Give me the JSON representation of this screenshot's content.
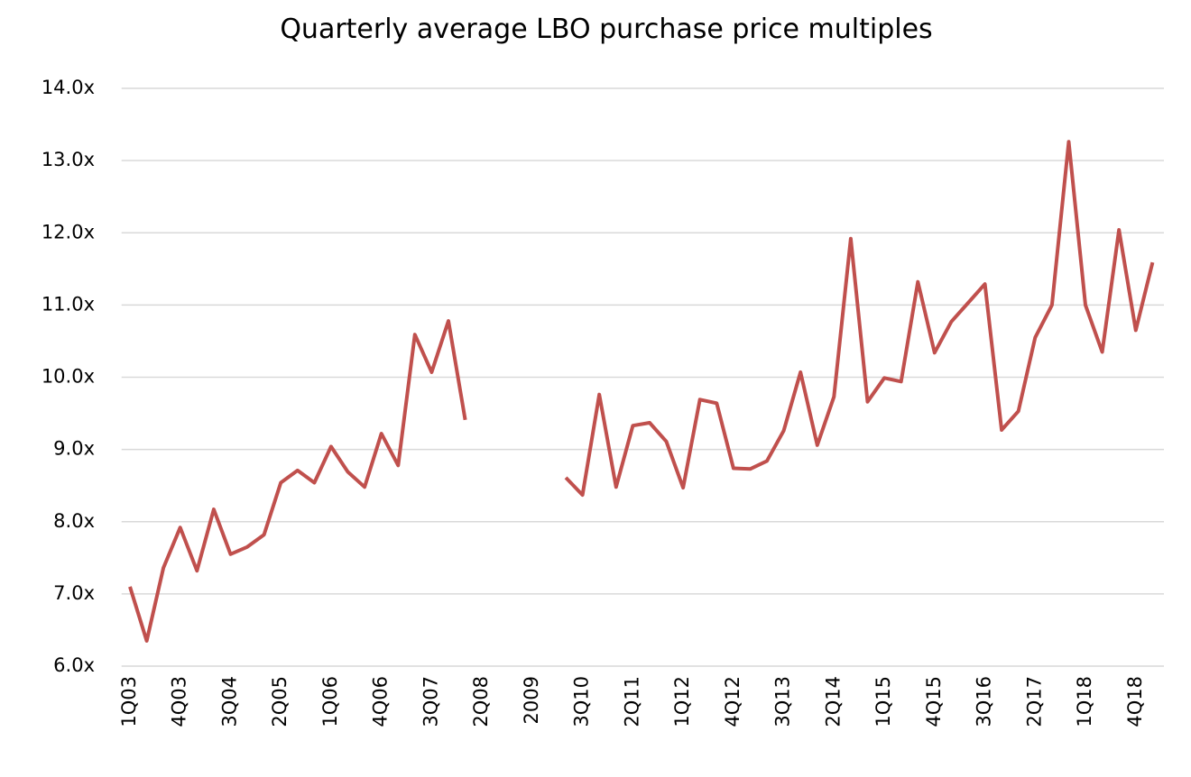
{
  "chart_data": {
    "type": "line",
    "title": "Quarterly average LBO purchase price multiples",
    "categories": [
      "1Q03",
      null,
      null,
      "4Q03",
      null,
      null,
      "3Q04",
      null,
      null,
      "2Q05",
      null,
      null,
      "1Q06",
      null,
      null,
      "4Q06",
      null,
      null,
      "3Q07",
      null,
      null,
      "2Q08",
      null,
      null,
      "2009",
      null,
      null,
      "3Q10",
      null,
      null,
      "2Q11",
      null,
      null,
      "1Q12",
      null,
      null,
      "4Q12",
      null,
      null,
      "3Q13",
      null,
      null,
      "2Q14",
      null,
      null,
      "1Q15",
      null,
      null,
      "4Q15",
      null,
      null,
      "3Q16",
      null,
      null,
      "2Q17",
      null,
      null,
      "1Q18",
      null,
      null,
      "4Q18",
      null
    ],
    "series": [
      {
        "name": "LBO purchase price multiple",
        "color": "#c0504d",
        "values": [
          7.1,
          6.35,
          7.36,
          7.92,
          7.32,
          8.17,
          7.55,
          7.65,
          7.82,
          8.54,
          8.71,
          8.54,
          9.04,
          8.69,
          8.48,
          9.22,
          8.78,
          10.59,
          10.07,
          10.78,
          9.41,
          null,
          null,
          null,
          null,
          null,
          8.61,
          8.37,
          9.76,
          8.48,
          9.33,
          9.37,
          9.11,
          8.47,
          9.69,
          9.64,
          8.74,
          8.73,
          8.84,
          9.26,
          10.07,
          9.06,
          9.73,
          11.92,
          9.66,
          9.99,
          9.94,
          11.32,
          10.34,
          10.77,
          11.03,
          11.29,
          9.27,
          9.53,
          10.55,
          11.0,
          13.26,
          11.0,
          10.35,
          12.04,
          10.65,
          11.59
        ]
      }
    ],
    "ylim": [
      6,
      14
    ],
    "yticks": [
      {
        "value": 6,
        "label": "6.0x"
      },
      {
        "value": 7,
        "label": "7.0x"
      },
      {
        "value": 8,
        "label": "8.0x"
      },
      {
        "value": 9,
        "label": "9.0x"
      },
      {
        "value": 10,
        "label": "10.0x"
      },
      {
        "value": 11,
        "label": "11.0x"
      },
      {
        "value": 12,
        "label": "12.0x"
      },
      {
        "value": 13,
        "label": "13.0x"
      },
      {
        "value": 14,
        "label": "14.0x"
      }
    ],
    "grid": true
  }
}
